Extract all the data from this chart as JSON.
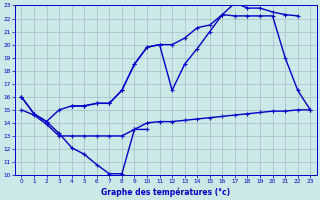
{
  "xlabel": "Graphe des températures (°c)",
  "x_hours": [
    0,
    1,
    2,
    3,
    4,
    5,
    6,
    7,
    8,
    9,
    10,
    11,
    12,
    13,
    14,
    15,
    16,
    17,
    18,
    19,
    20,
    21,
    22,
    23
  ],
  "line_min": [
    16.0,
    14.7,
    14.1,
    13.2,
    12.1,
    11.6,
    10.8,
    10.1,
    10.1,
    13.5,
    13.5,
    null,
    null,
    null,
    null,
    null,
    null,
    null,
    null,
    null,
    null,
    null,
    null,
    null
  ],
  "line_main": [
    16.0,
    14.7,
    14.1,
    15.0,
    15.3,
    15.3,
    15.5,
    15.5,
    16.5,
    18.5,
    19.8,
    20.0,
    16.5,
    18.5,
    19.7,
    21.0,
    22.3,
    22.2,
    22.2,
    22.2,
    22.2,
    19.0,
    16.5,
    15.0
  ],
  "line_flat": [
    15.0,
    14.6,
    13.9,
    13.0,
    13.0,
    13.0,
    13.0,
    13.0,
    13.0,
    13.5,
    14.0,
    14.1,
    14.1,
    14.2,
    14.3,
    14.4,
    14.5,
    14.6,
    14.7,
    14.8,
    14.9,
    14.9,
    15.0,
    15.0
  ],
  "line_upper": [
    null,
    null,
    null,
    null,
    15.3,
    15.3,
    15.5,
    15.5,
    16.5,
    18.5,
    19.8,
    20.0,
    20.0,
    20.5,
    21.3,
    21.5,
    22.3,
    23.2,
    22.8,
    22.8,
    22.5,
    22.3,
    22.2,
    null
  ],
  "ylim": [
    10,
    23
  ],
  "yticks": [
    10,
    11,
    12,
    13,
    14,
    15,
    16,
    17,
    18,
    19,
    20,
    21,
    22,
    23
  ],
  "xticks": [
    0,
    1,
    2,
    3,
    4,
    5,
    6,
    7,
    8,
    9,
    10,
    11,
    12,
    13,
    14,
    15,
    16,
    17,
    18,
    19,
    20,
    21,
    22,
    23
  ],
  "bg_color": "#cce8e8",
  "grid_color": "#aabbcc",
  "line_color": "#0000cc",
  "linewidth": 1.0,
  "markersize": 3.0
}
